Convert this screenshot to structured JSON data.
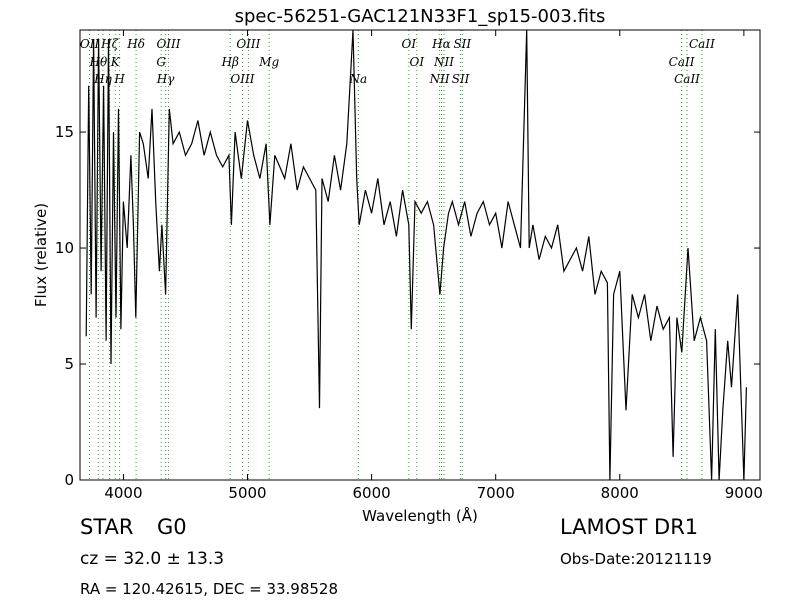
{
  "chart_data": {
    "type": "line",
    "title": "spec-56251-GAC121N33F1_sp15-003.fits",
    "x_label": "Wavelength (Å)",
    "y_label": "Flux (relative)",
    "xlim": [
      3650,
      9130
    ],
    "ylim": [
      0,
      19.4
    ],
    "xticks": [
      4000,
      5000,
      6000,
      7000,
      8000,
      9000
    ],
    "yticks": [
      0,
      5,
      10,
      15
    ],
    "color": "#000000",
    "line_color": "#33aa33",
    "x": [
      3700,
      3720,
      3740,
      3760,
      3780,
      3800,
      3820,
      3840,
      3860,
      3880,
      3900,
      3920,
      3940,
      3960,
      3980,
      4000,
      4030,
      4060,
      4080,
      4100,
      4130,
      4160,
      4200,
      4230,
      4260,
      4290,
      4310,
      4340,
      4370,
      4400,
      4450,
      4500,
      4550,
      4600,
      4650,
      4700,
      4750,
      4800,
      4850,
      4870,
      4900,
      4950,
      5000,
      5050,
      5100,
      5150,
      5180,
      5220,
      5260,
      5300,
      5350,
      5400,
      5450,
      5500,
      5550,
      5580,
      5600,
      5650,
      5700,
      5750,
      5800,
      5850,
      5880,
      5900,
      5950,
      6000,
      6050,
      6100,
      6150,
      6200,
      6250,
      6300,
      6320,
      6350,
      6400,
      6450,
      6500,
      6550,
      6580,
      6620,
      6650,
      6700,
      6750,
      6800,
      6850,
      6900,
      6950,
      7000,
      7050,
      7100,
      7150,
      7200,
      7250,
      7270,
      7300,
      7350,
      7400,
      7450,
      7500,
      7550,
      7600,
      7650,
      7700,
      7750,
      7800,
      7850,
      7900,
      7920,
      7950,
      8000,
      8050,
      8100,
      8150,
      8200,
      8250,
      8300,
      8350,
      8400,
      8430,
      8460,
      8500,
      8550,
      8600,
      8650,
      8700,
      8740,
      8770,
      8800,
      8830,
      8870,
      8900,
      8950,
      9000,
      9020
    ],
    "values": [
      6.2,
      17,
      8,
      19,
      7,
      19,
      9,
      17,
      6,
      19,
      5,
      15,
      7,
      16,
      6.5,
      12,
      10,
      14,
      11,
      7,
      15,
      14.5,
      13,
      16,
      12,
      9,
      11,
      8,
      16,
      14.5,
      15,
      14,
      14.5,
      15.5,
      14,
      15,
      14,
      13.5,
      14,
      11,
      15,
      13,
      15.5,
      14,
      13,
      14.5,
      11,
      14,
      13.5,
      13,
      14.5,
      12.5,
      13.5,
      13,
      12.5,
      3.1,
      13,
      12,
      14,
      12.5,
      14.5,
      19.4,
      13,
      11,
      12.5,
      11.5,
      13,
      11,
      12,
      10.5,
      12.5,
      11,
      6.5,
      12,
      11.5,
      12,
      11,
      8,
      10,
      11.5,
      12,
      11,
      12,
      10.5,
      11.5,
      12,
      11,
      11.5,
      10,
      12,
      11,
      10,
      19.4,
      10,
      11,
      9.5,
      10.5,
      10,
      11,
      9,
      9.5,
      10,
      9,
      10.5,
      8,
      9,
      8.5,
      0,
      8,
      9,
      3,
      8,
      7,
      8,
      6,
      7.5,
      6.5,
      7,
      1,
      7,
      5.5,
      10,
      6,
      7,
      6,
      0,
      6.5,
      0,
      3,
      6,
      4,
      8,
      0,
      4
    ],
    "lines": [
      {
        "label": "OII",
        "x": 3727
      },
      {
        "label": "Hθ",
        "x": 3798
      },
      {
        "label": "Hη",
        "x": 3835
      },
      {
        "label": "Hζ",
        "x": 3889
      },
      {
        "label": "K",
        "x": 3934
      },
      {
        "label": "H",
        "x": 3969
      },
      {
        "label": "Hδ",
        "x": 4102
      },
      {
        "label": "G",
        "x": 4304
      },
      {
        "label": "Hγ",
        "x": 4340
      },
      {
        "label": "OIII",
        "x": 4363
      },
      {
        "label": "Hβ",
        "x": 4861
      },
      {
        "label": "OIII",
        "x": 4959
      },
      {
        "label": "OIII",
        "x": 5007
      },
      {
        "label": "Mg",
        "x": 5175
      },
      {
        "label": "Na",
        "x": 5893
      },
      {
        "label": "OI",
        "x": 6300
      },
      {
        "label": "OI",
        "x": 6364
      },
      {
        "label": "NII",
        "x": 6548
      },
      {
        "label": "Hα",
        "x": 6563
      },
      {
        "label": "NII",
        "x": 6583
      },
      {
        "label": "SII",
        "x": 6717
      },
      {
        "label": "SII",
        "x": 6731
      },
      {
        "label": "CaII",
        "x": 8498
      },
      {
        "label": "CaII",
        "x": 8542
      },
      {
        "label": "CaII",
        "x": 8662
      }
    ]
  },
  "info": {
    "class": "STAR",
    "subclass": "G0",
    "cz": "cz = 32.0 ± 13.3",
    "coords": "RA = 120.42615, DEC = 33.98528",
    "survey": "LAMOST DR1",
    "obs_date": "Obs-Date:20121119"
  }
}
